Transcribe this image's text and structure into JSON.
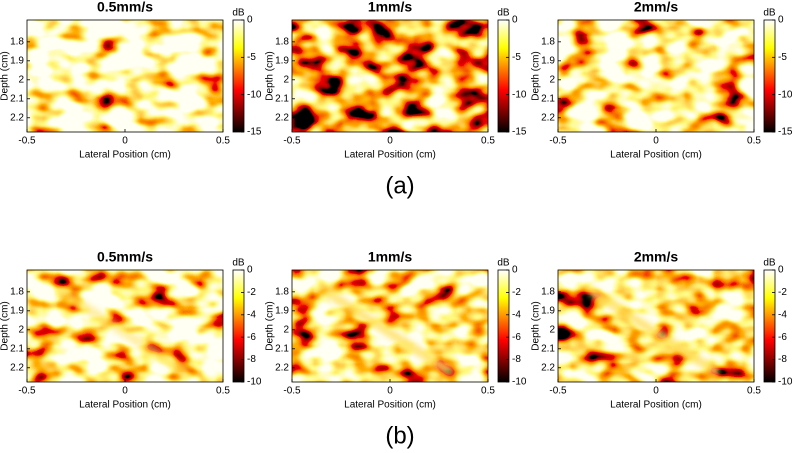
{
  "panel_labels": [
    "(a)",
    "(b)"
  ],
  "chart_data": [
    {
      "type": "heatmap",
      "title": "0.5mm/s",
      "xlabel": "Lateral Position (cm)",
      "ylabel": "Depth (cm)",
      "colorbar_label": "dB",
      "colormap": "hot",
      "xlim": [
        -0.5,
        0.5
      ],
      "xticks": [
        -0.5,
        0,
        0.5
      ],
      "ylim": [
        1.685,
        2.275
      ],
      "yticks": [
        1.8,
        1.9,
        2,
        2.1,
        2.2
      ],
      "clim": [
        -15,
        0
      ],
      "cticks": [
        0,
        -5,
        -10,
        -15
      ]
    },
    {
      "type": "heatmap",
      "title": "1mm/s",
      "xlabel": "Lateral Position (cm)",
      "ylabel": "Depth (cm)",
      "colorbar_label": "dB",
      "colormap": "hot",
      "xlim": [
        -0.5,
        0.5
      ],
      "xticks": [
        -0.5,
        0,
        0.5
      ],
      "ylim": [
        1.685,
        2.275
      ],
      "yticks": [
        1.8,
        1.9,
        2,
        2.1,
        2.2
      ],
      "clim": [
        -15,
        0
      ],
      "cticks": [
        0,
        -5,
        -10,
        -15
      ]
    },
    {
      "type": "heatmap",
      "title": "2mm/s",
      "xlabel": "Lateral Position (cm)",
      "ylabel": "Depth (cm)",
      "colorbar_label": "dB",
      "colormap": "hot",
      "xlim": [
        -0.5,
        0.5
      ],
      "xticks": [
        -0.5,
        0,
        0.5
      ],
      "ylim": [
        1.685,
        2.275
      ],
      "yticks": [
        1.8,
        1.9,
        2,
        2.1,
        2.2
      ],
      "clim": [
        -15,
        0
      ],
      "cticks": [
        0,
        -5,
        -10,
        -15
      ]
    },
    {
      "type": "heatmap",
      "title": "0.5mm/s",
      "xlabel": "Lateral Position (cm)",
      "ylabel": "Depth (cm)",
      "colorbar_label": "dB",
      "colormap": "hot",
      "xlim": [
        -0.5,
        0.5
      ],
      "xticks": [
        -0.5,
        0,
        0.5
      ],
      "ylim": [
        1.685,
        2.275
      ],
      "yticks": [
        1.8,
        1.9,
        2,
        2.1,
        2.2
      ],
      "clim": [
        -10,
        0
      ],
      "cticks": [
        0,
        -2,
        -4,
        -6,
        -8,
        -10
      ]
    },
    {
      "type": "heatmap",
      "title": "1mm/s",
      "xlabel": "Lateral Position (cm)",
      "ylabel": "Depth (cm)",
      "colorbar_label": "dB",
      "colormap": "hot",
      "xlim": [
        -0.5,
        0.5
      ],
      "xticks": [
        -0.5,
        0,
        0.5
      ],
      "ylim": [
        1.685,
        2.275
      ],
      "yticks": [
        1.8,
        1.9,
        2,
        2.1,
        2.2
      ],
      "clim": [
        -10,
        0
      ],
      "cticks": [
        0,
        -2,
        -4,
        -6,
        -8,
        -10
      ]
    },
    {
      "type": "heatmap",
      "title": "2mm/s",
      "xlabel": "Lateral Position (cm)",
      "ylabel": "Depth (cm)",
      "colorbar_label": "dB",
      "colormap": "hot",
      "xlim": [
        -0.5,
        0.5
      ],
      "xticks": [
        -0.5,
        0,
        0.5
      ],
      "ylim": [
        1.685,
        2.275
      ],
      "yticks": [
        1.8,
        1.9,
        2,
        2.1,
        2.2
      ],
      "clim": [
        -10,
        0
      ],
      "cticks": [
        0,
        -2,
        -4,
        -6,
        -8,
        -10
      ]
    }
  ]
}
